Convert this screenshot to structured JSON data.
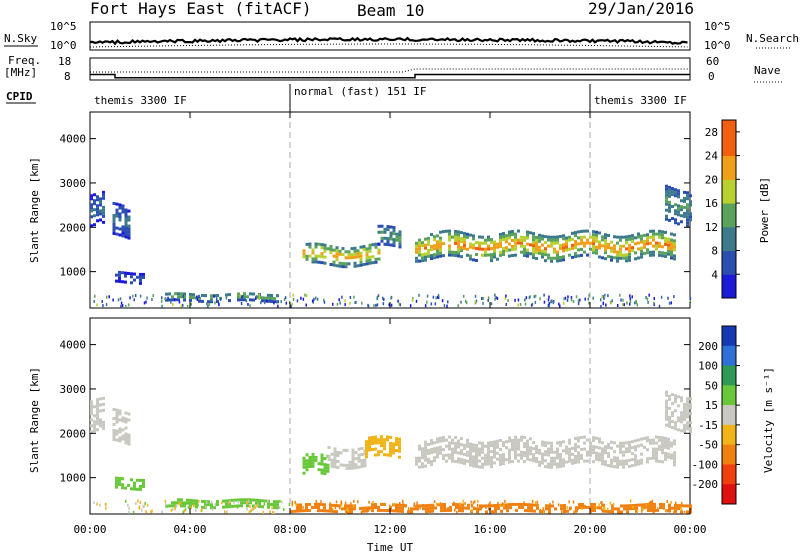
{
  "header": {
    "station": "Fort Hays East (fitACF)",
    "beam": "Beam 10",
    "date": "29/Jan/2016"
  },
  "top_panels": {
    "nsky_label": "N.Sky",
    "nsky_ticks": [
      "10^5",
      "10^0"
    ],
    "nsearch_label": "N.Search",
    "nsearch_ticks": [
      "10^5",
      "10^0"
    ],
    "freq_label": "Freq.",
    "freq_unit": "[MHz]",
    "freq_ticks": [
      "18",
      "8"
    ],
    "nave_label": "Nave",
    "nave_ticks": [
      "60",
      "0"
    ],
    "cpid_label": "CPID",
    "cpid_segments": [
      {
        "label": "themis 3300 IF",
        "start_hour": 0,
        "end_hour": 8
      },
      {
        "label": "normal (fast) 151 IF",
        "start_hour": 8,
        "end_hour": 20
      },
      {
        "label": "themis 3300 IF",
        "start_hour": 20,
        "end_hour": 24
      }
    ],
    "freq_steps": [
      {
        "start_hour": 0,
        "end_hour": 1,
        "freq_mhz": 10.5
      },
      {
        "start_hour": 1,
        "end_hour": 13,
        "freq_mhz": 9.0
      },
      {
        "start_hour": 13,
        "end_hour": 24,
        "freq_mhz": 10.5
      }
    ]
  },
  "x_axis": {
    "label": "Time UT",
    "ticks": [
      "00:00",
      "04:00",
      "08:00",
      "12:00",
      "16:00",
      "20:00",
      "00:00"
    ]
  },
  "chart_data": [
    {
      "type": "heatmap",
      "quantity": "power",
      "ylabel": "Slant Range [km]",
      "yticks": [
        1000,
        2000,
        3000,
        4000
      ],
      "ylim": [
        180,
        4600
      ],
      "xlim_hours": [
        0,
        24
      ],
      "colorbar": {
        "label": "Power [dB]",
        "ticks": [
          4,
          8,
          12,
          16,
          20,
          24,
          28
        ],
        "range": [
          0,
          30
        ]
      },
      "echo_regions": [
        {
          "start_hour": 0.0,
          "end_hour": 0.6,
          "range_center_km": 2350,
          "range_half_width_km": 350,
          "value": 8
        },
        {
          "start_hour": 0.9,
          "end_hour": 1.6,
          "range_center_km": 2100,
          "range_half_width_km": 350,
          "value": 9
        },
        {
          "start_hour": 1.0,
          "end_hour": 2.1,
          "range_center_km": 850,
          "range_half_width_km": 120,
          "value": 6
        },
        {
          "start_hour": 3.0,
          "end_hour": 7.5,
          "range_center_km": 400,
          "range_half_width_km": 90,
          "value": 15
        },
        {
          "start_hour": 8.5,
          "end_hour": 11.5,
          "range_center_km": 1350,
          "range_half_width_km": 220,
          "value": 21
        },
        {
          "start_hour": 11.5,
          "end_hour": 12.4,
          "range_center_km": 1750,
          "range_half_width_km": 220,
          "value": 13
        },
        {
          "start_hour": 13.0,
          "end_hour": 23.4,
          "range_center_km": 1550,
          "range_half_width_km": 280,
          "value": 22
        },
        {
          "start_hour": 23.0,
          "end_hour": 24.0,
          "range_center_km": 2500,
          "range_half_width_km": 400,
          "value": 12
        }
      ]
    },
    {
      "type": "heatmap",
      "quantity": "velocity",
      "ylabel": "Slant Range [km]",
      "yticks": [
        1000,
        2000,
        3000,
        4000
      ],
      "ylim": [
        180,
        4600
      ],
      "xlim_hours": [
        0,
        24
      ],
      "colorbar": {
        "label": "Velocity [m s⁻¹]",
        "ticks": [
          200,
          100,
          50,
          15,
          -15,
          -50,
          -100,
          -200
        ],
        "classes": [
          {
            "min": 200,
            "color": "#1538b5"
          },
          {
            "min": 100,
            "color": "#2f6fd8"
          },
          {
            "min": 50,
            "color": "#2f9a55"
          },
          {
            "min": 15,
            "color": "#68c83a"
          },
          {
            "min": -15,
            "color": "#c8c8c0"
          },
          {
            "min": -50,
            "color": "#f0b418"
          },
          {
            "min": -100,
            "color": "#f08010"
          },
          {
            "min": -200,
            "color": "#f04010"
          },
          {
            "min": -9999,
            "color": "#e01010"
          }
        ]
      },
      "echo_regions": [
        {
          "start_hour": 0.0,
          "end_hour": 0.6,
          "range_center_km": 2350,
          "range_half_width_km": 350,
          "value": 0
        },
        {
          "start_hour": 0.9,
          "end_hour": 1.6,
          "range_center_km": 2100,
          "range_half_width_km": 350,
          "value": 0
        },
        {
          "start_hour": 1.0,
          "end_hour": 2.1,
          "range_center_km": 850,
          "range_half_width_km": 120,
          "value": 30
        },
        {
          "start_hour": 3.0,
          "end_hour": 7.5,
          "range_center_km": 400,
          "range_half_width_km": 90,
          "value": 30
        },
        {
          "start_hour": 8.5,
          "end_hour": 9.5,
          "range_center_km": 1250,
          "range_half_width_km": 220,
          "value": 30
        },
        {
          "start_hour": 9.5,
          "end_hour": 11.0,
          "range_center_km": 1450,
          "range_half_width_km": 220,
          "value": 0
        },
        {
          "start_hour": 11.0,
          "end_hour": 12.4,
          "range_center_km": 1650,
          "range_half_width_km": 220,
          "value": -40
        },
        {
          "start_hour": 13.0,
          "end_hour": 23.4,
          "range_center_km": 1550,
          "range_half_width_km": 280,
          "value": 0
        },
        {
          "start_hour": 23.0,
          "end_hour": 24.0,
          "range_center_km": 2500,
          "range_half_width_km": 400,
          "value": 0
        },
        {
          "start_hour": 8.0,
          "end_hour": 24.0,
          "range_center_km": 280,
          "range_half_width_km": 70,
          "value": -60
        }
      ]
    }
  ]
}
